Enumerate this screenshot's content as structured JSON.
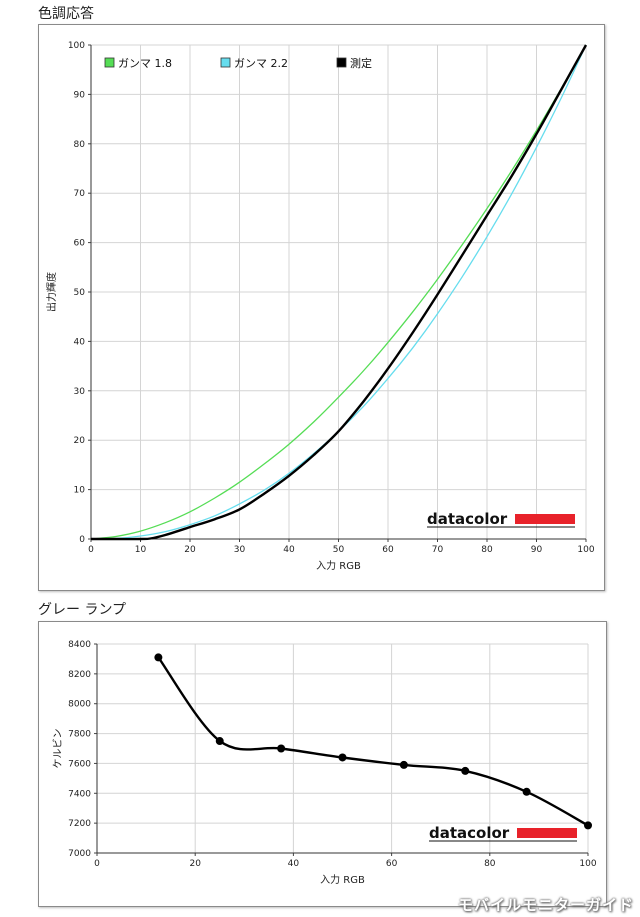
{
  "chart_data": [
    {
      "type": "line",
      "title": "色調応答",
      "xlabel": "入力 RGB",
      "ylabel": "出力輝度",
      "xlim": [
        0,
        100
      ],
      "ylim": [
        0,
        100
      ],
      "xticks": [
        0,
        10,
        20,
        30,
        40,
        50,
        60,
        70,
        80,
        90,
        100
      ],
      "yticks": [
        0,
        10,
        20,
        30,
        40,
        50,
        60,
        70,
        80,
        90,
        100
      ],
      "grid": true,
      "legend": "top-left",
      "logo": "datacolor",
      "series": [
        {
          "name": "ガンマ 1.8",
          "color": "#55dd55",
          "x": [
            0,
            5,
            10,
            15,
            20,
            25,
            30,
            35,
            40,
            45,
            50,
            55,
            60,
            65,
            70,
            75,
            80,
            85,
            90,
            95,
            100
          ],
          "y": [
            0,
            0.5,
            1.6,
            3.3,
            5.5,
            8.3,
            11.5,
            15.2,
            19.2,
            23.7,
            28.7,
            34.0,
            39.8,
            46.0,
            52.6,
            59.6,
            66.9,
            74.6,
            82.7,
            91.2,
            100
          ]
        },
        {
          "name": "ガンマ 2.2",
          "color": "#66ddee",
          "x": [
            0,
            5,
            10,
            15,
            20,
            25,
            30,
            35,
            40,
            45,
            50,
            55,
            60,
            65,
            70,
            75,
            80,
            85,
            90,
            95,
            100
          ],
          "y": [
            0,
            0.1,
            0.6,
            1.5,
            2.9,
            4.7,
            7.1,
            9.9,
            13.3,
            17.3,
            21.8,
            26.8,
            32.5,
            38.7,
            45.6,
            53.1,
            61.2,
            69.9,
            79.3,
            89.3,
            100
          ]
        },
        {
          "name": "測定",
          "color": "#000000",
          "x": [
            0,
            5,
            10,
            12,
            15,
            20,
            25,
            30,
            35,
            40,
            45,
            50,
            55,
            60,
            65,
            70,
            75,
            80,
            85,
            90,
            95,
            100
          ],
          "y": [
            0,
            0,
            0,
            0.1,
            0.8,
            2.4,
            4.0,
            6.0,
            9.2,
            12.8,
            17.0,
            21.8,
            27.8,
            34.5,
            41.8,
            49.5,
            57.5,
            65.5,
            73.5,
            82.0,
            91.0,
            100
          ]
        }
      ]
    },
    {
      "type": "line",
      "title": "グレー ランプ",
      "xlabel": "入力 RGB",
      "ylabel": "ケルビン",
      "xlim": [
        0,
        100
      ],
      "ylim": [
        7000,
        8400
      ],
      "xticks": [
        0,
        20,
        40,
        60,
        80,
        100
      ],
      "yticks": [
        7000,
        7200,
        7400,
        7600,
        7800,
        8000,
        8200,
        8400
      ],
      "grid": true,
      "logo": "datacolor",
      "series": [
        {
          "color": "#000000",
          "x": [
            12.5,
            25,
            37.5,
            50,
            62.5,
            75,
            87.5,
            100
          ],
          "y": [
            8310,
            7750,
            7700,
            7640,
            7590,
            7550,
            7410,
            7185
          ]
        }
      ]
    }
  ],
  "watermark": "モバイルモニターガイド"
}
